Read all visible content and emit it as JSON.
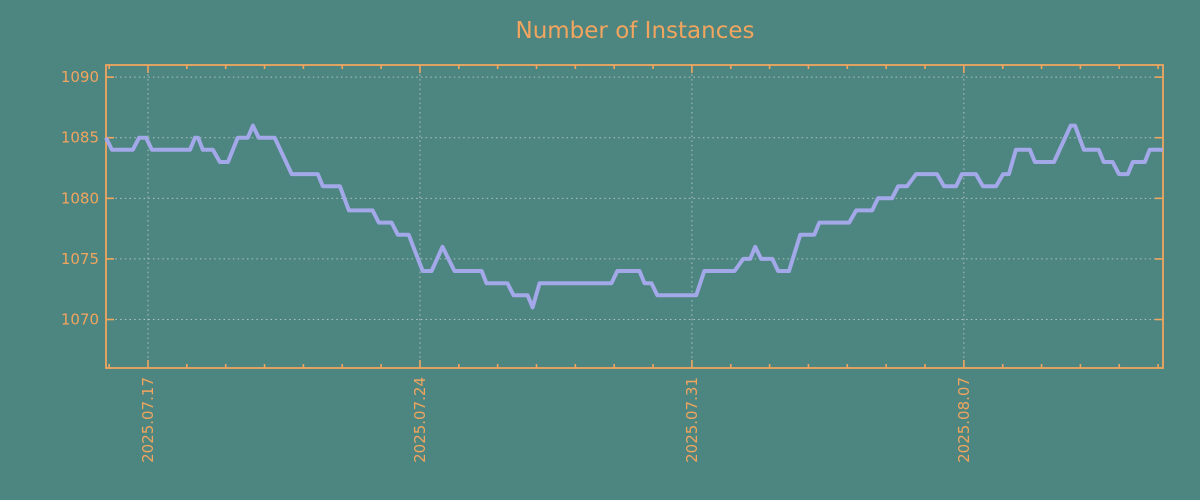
{
  "chart_data": {
    "type": "line",
    "title": "Number of Instances",
    "x_axis": {
      "label": "",
      "tick_label_rotation_deg": -90,
      "epoch_note": "day offsets relative to 2025.07.17",
      "ticks": [
        {
          "day": 0,
          "label": "2025.07.17"
        },
        {
          "day": 7,
          "label": "2025.07.24"
        },
        {
          "day": 14,
          "label": "2025.07.31"
        },
        {
          "day": 21,
          "label": "2025.08.07"
        }
      ],
      "minor_tick_step_days": 1,
      "range_days": [
        -1.08,
        26.12
      ],
      "grid": true
    },
    "y_axis": {
      "label": "",
      "ticks": [
        1070,
        1075,
        1080,
        1085,
        1090
      ],
      "range": [
        1066,
        1091
      ],
      "grid": true
    },
    "series": [
      {
        "name": "Number of Instances",
        "color": "#a2a8e8",
        "points": [
          [
            -1.08,
            1085
          ],
          [
            -0.93,
            1084
          ],
          [
            -0.39,
            1084
          ],
          [
            -0.23,
            1085
          ],
          [
            -0.05,
            1085
          ],
          [
            0.1,
            1084
          ],
          [
            1.08,
            1084
          ],
          [
            1.21,
            1085
          ],
          [
            1.29,
            1085
          ],
          [
            1.41,
            1084
          ],
          [
            1.67,
            1084
          ],
          [
            1.85,
            1083
          ],
          [
            2.06,
            1083
          ],
          [
            2.31,
            1085
          ],
          [
            2.57,
            1085
          ],
          [
            2.7,
            1086
          ],
          [
            2.85,
            1085
          ],
          [
            3.26,
            1085
          ],
          [
            3.7,
            1082
          ],
          [
            4.37,
            1082
          ],
          [
            4.5,
            1081
          ],
          [
            4.94,
            1081
          ],
          [
            5.17,
            1079
          ],
          [
            5.78,
            1079
          ],
          [
            5.94,
            1078
          ],
          [
            6.27,
            1078
          ],
          [
            6.43,
            1077
          ],
          [
            6.71,
            1077
          ],
          [
            7.07,
            1074
          ],
          [
            7.3,
            1074
          ],
          [
            7.58,
            1076
          ],
          [
            7.89,
            1074
          ],
          [
            8.59,
            1074
          ],
          [
            8.71,
            1073
          ],
          [
            9.25,
            1073
          ],
          [
            9.41,
            1072
          ],
          [
            9.77,
            1072
          ],
          [
            9.9,
            1071
          ],
          [
            10.08,
            1073
          ],
          [
            11.93,
            1073
          ],
          [
            12.08,
            1074
          ],
          [
            12.65,
            1074
          ],
          [
            12.78,
            1073
          ],
          [
            12.96,
            1073
          ],
          [
            13.11,
            1072
          ],
          [
            14.11,
            1072
          ],
          [
            14.32,
            1074
          ],
          [
            15.1,
            1074
          ],
          [
            15.32,
            1075
          ],
          [
            15.5,
            1075
          ],
          [
            15.63,
            1076
          ],
          [
            15.78,
            1075
          ],
          [
            16.07,
            1075
          ],
          [
            16.22,
            1074
          ],
          [
            16.5,
            1074
          ],
          [
            16.79,
            1077
          ],
          [
            17.15,
            1077
          ],
          [
            17.28,
            1078
          ],
          [
            18.05,
            1078
          ],
          [
            18.23,
            1079
          ],
          [
            18.64,
            1079
          ],
          [
            18.79,
            1080
          ],
          [
            19.15,
            1080
          ],
          [
            19.31,
            1081
          ],
          [
            19.54,
            1081
          ],
          [
            19.77,
            1082
          ],
          [
            20.31,
            1082
          ],
          [
            20.49,
            1081
          ],
          [
            20.8,
            1081
          ],
          [
            20.95,
            1082
          ],
          [
            21.31,
            1082
          ],
          [
            21.49,
            1081
          ],
          [
            21.83,
            1081
          ],
          [
            22.01,
            1082
          ],
          [
            22.16,
            1082
          ],
          [
            22.34,
            1084
          ],
          [
            22.7,
            1084
          ],
          [
            22.83,
            1083
          ],
          [
            23.32,
            1083
          ],
          [
            23.75,
            1086
          ],
          [
            23.86,
            1086
          ],
          [
            24.09,
            1084
          ],
          [
            24.47,
            1084
          ],
          [
            24.6,
            1083
          ],
          [
            24.83,
            1083
          ],
          [
            24.99,
            1082
          ],
          [
            25.22,
            1082
          ],
          [
            25.35,
            1083
          ],
          [
            25.66,
            1083
          ],
          [
            25.78,
            1084
          ],
          [
            26.12,
            1084
          ]
        ]
      }
    ],
    "legend": {
      "visible": false
    },
    "colors": {
      "background": "#4d8581",
      "axis": "#f1a55e",
      "tick_labels": "#f1a55e",
      "title": "#f1a55e",
      "grid": "#c2cecb",
      "line": "#a2a8e8"
    }
  }
}
